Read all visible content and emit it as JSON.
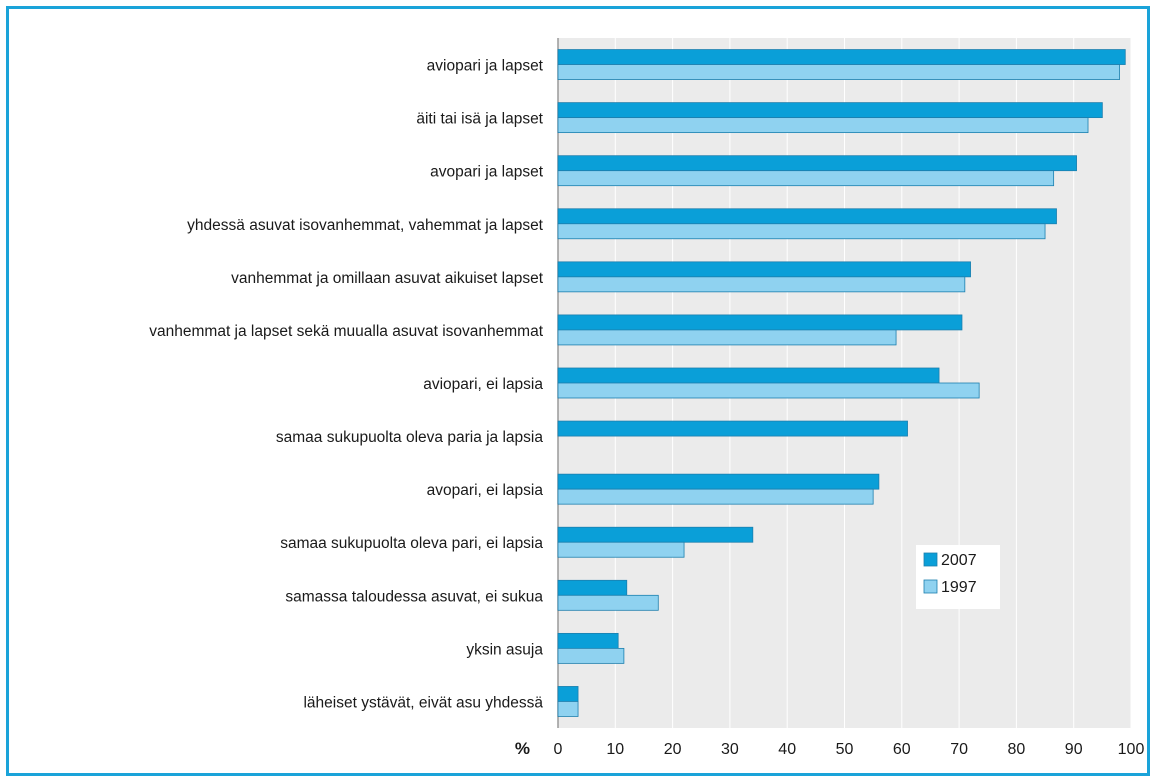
{
  "chart_data": {
    "type": "bar",
    "orientation": "horizontal",
    "categories": [
      "aviopari ja lapset",
      "äiti tai isä ja lapset",
      "avopari ja lapset",
      "yhdessä asuvat isovanhemmat, vahemmat ja lapset",
      "vanhemmat ja omillaan asuvat aikuiset lapset",
      "vanhemmat ja lapset sekä muualla asuvat isovanhemmat",
      "aviopari, ei lapsia",
      "samaa sukupuolta oleva paria ja lapsia",
      "avopari, ei lapsia",
      "samaa sukupuolta oleva pari, ei lapsia",
      "samassa taloudessa asuvat, ei sukua",
      "yksin asuja",
      "läheiset ystävät, eivät asu yhdessä"
    ],
    "series": [
      {
        "name": "2007",
        "color": "#0a9fd8",
        "values": [
          99,
          95,
          90.5,
          87,
          72,
          70.5,
          66.5,
          61,
          56,
          34,
          12,
          10.5,
          3.5
        ]
      },
      {
        "name": "1997",
        "color": "#8fd2f0",
        "values": [
          98,
          92.5,
          86.5,
          85,
          71,
          59,
          73.5,
          null,
          55,
          22,
          17.5,
          11.5,
          3.5
        ]
      }
    ],
    "xlabel": "%",
    "xlim": [
      0,
      100
    ],
    "xticks": [
      "0",
      "10",
      "20",
      "30",
      "40",
      "50",
      "60",
      "70",
      "80",
      "90",
      "100"
    ],
    "grid": "vertical",
    "legend_position": "bottom-right",
    "colors": {
      "frame": "#1aa3d9",
      "plot_bg": "#ebebeb",
      "grid": "#ffffff",
      "bar_edge": "#1c7fae"
    }
  }
}
